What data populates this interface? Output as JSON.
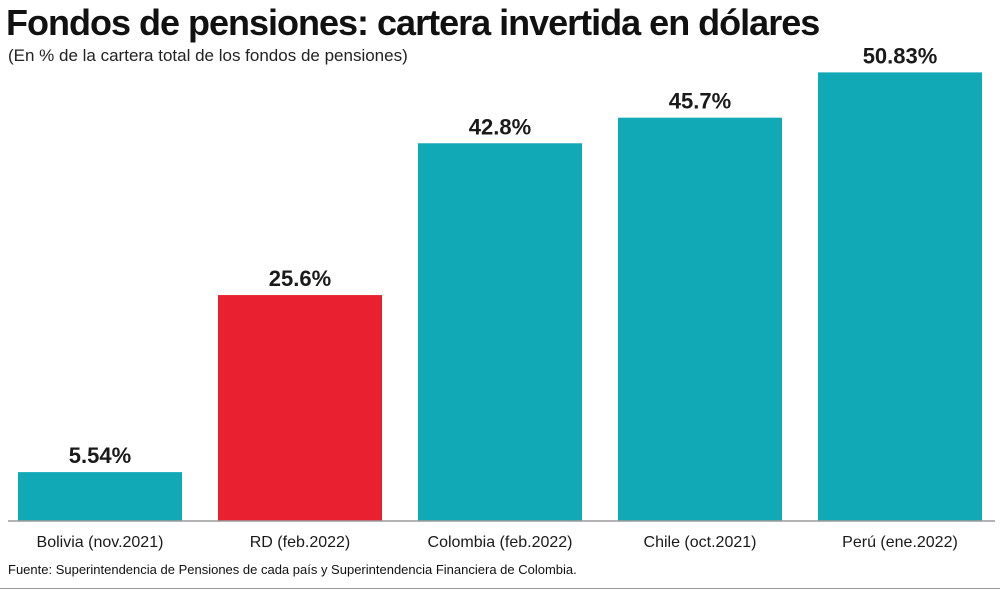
{
  "chart_data": {
    "type": "bar",
    "title": "Fondos de pensiones:  cartera invertida en dólares",
    "subtitle": "(En % de la cartera total de los fondos de pensiones)",
    "categories": [
      "Bolivia (nov.2021)",
      "RD (feb.2022)",
      "Colombia (feb.2022)",
      "Chile (oct.2021)",
      "Perú (ene.2022)"
    ],
    "values": [
      5.54,
      25.6,
      42.8,
      45.7,
      50.83
    ],
    "value_labels": [
      "5.54%",
      "25.6%",
      "42.8%",
      "45.7%",
      "50.83%"
    ],
    "colors": [
      "#12a9b6",
      "#e8202f",
      "#12a9b6",
      "#12a9b6",
      "#12a9b6"
    ],
    "ylim": [
      0,
      54.5
    ],
    "xlabel": "",
    "ylabel": "",
    "grid": false,
    "legend": "none"
  },
  "source": "Fuente: Superintendencia de Pensiones de cada país y Superintendencia Financiera de Colombia."
}
